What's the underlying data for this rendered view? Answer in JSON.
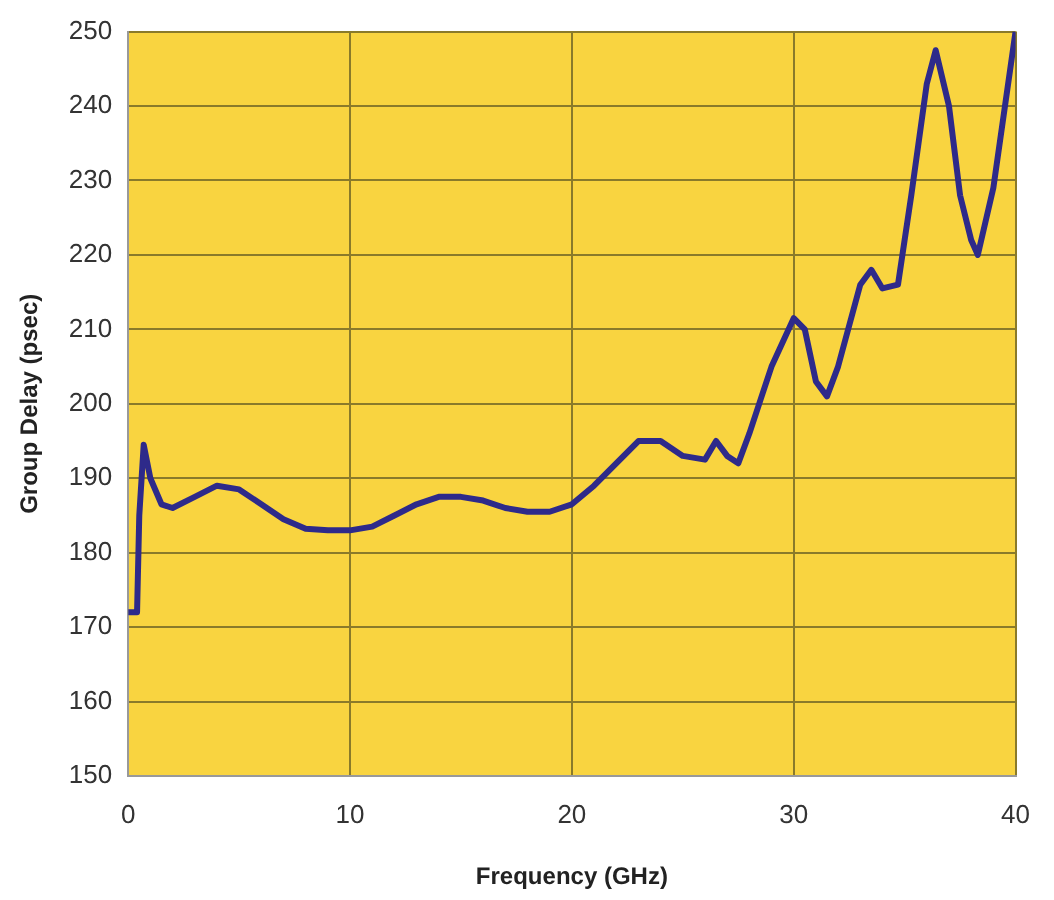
{
  "chart_data": {
    "type": "line",
    "xlabel": "Frequency (GHz)",
    "ylabel": "Group Delay (psec)",
    "x": [
      0,
      0.4,
      0.5,
      0.7,
      1,
      1.5,
      2,
      3,
      4,
      5,
      6,
      7,
      8,
      9,
      10,
      11,
      12,
      13,
      14,
      15,
      16,
      17,
      18,
      19,
      20,
      21,
      22,
      23,
      24,
      25,
      26,
      26.5,
      27,
      27.5,
      28,
      29,
      30,
      30.5,
      31,
      31.5,
      32,
      33,
      33.5,
      34,
      34.7,
      35.3,
      36,
      36.4,
      37,
      37.5,
      38,
      38.3,
      39,
      40
    ],
    "series": [
      {
        "color": "#2e2a8a",
        "values": [
          172,
          172,
          185,
          194.5,
          190,
          186.5,
          186,
          187.5,
          189,
          188.5,
          186.5,
          184.5,
          183.2,
          183,
          183,
          183.5,
          185,
          186.5,
          187.5,
          187.5,
          187,
          186,
          185.5,
          185.5,
          186.5,
          189,
          192,
          195,
          195,
          193,
          192.5,
          195,
          193,
          192,
          196,
          205,
          211.5,
          210,
          203,
          201,
          205,
          216,
          218,
          215.5,
          216,
          228,
          243,
          247.5,
          240,
          228,
          222,
          220,
          229,
          250
        ]
      }
    ],
    "xlim": [
      0,
      40
    ],
    "xticks": [
      0,
      10,
      20,
      30,
      40
    ],
    "ylim": [
      150,
      250
    ],
    "yticks": [
      150,
      160,
      170,
      180,
      190,
      200,
      210,
      220,
      230,
      240,
      250
    ],
    "grid": true,
    "legend": false,
    "marker": "none",
    "line_style": "solid"
  }
}
